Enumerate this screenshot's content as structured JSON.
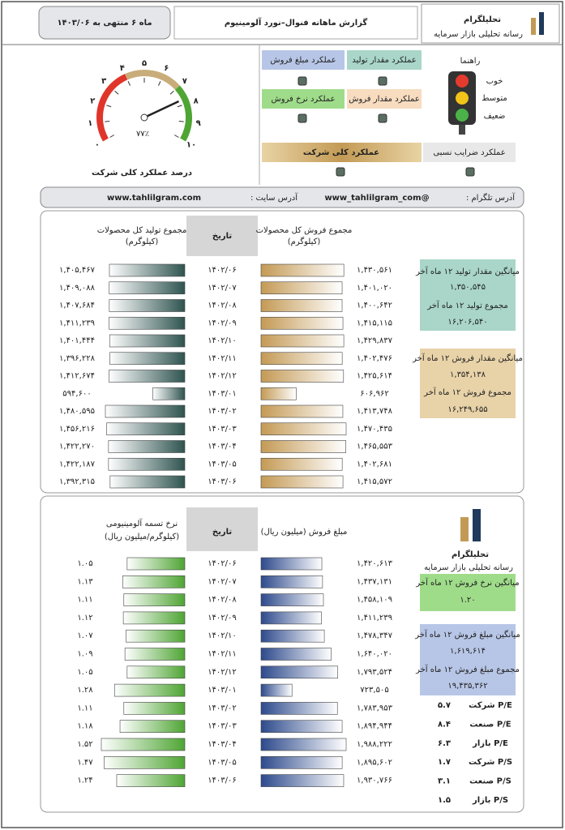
{
  "header": {
    "title": "گزارش ماهانه فنوال–نورد آلومینیوم",
    "period": "ماه ۶ منتهی به ۱۴۰۳/۰۶",
    "logo": "تحلیلگرام",
    "logo_sub": "رسانه تحلیلی بازار سرمایه"
  },
  "guide": {
    "title": "راهنما",
    "good": "خوب",
    "medium": "متوسط",
    "weak": "ضعیف"
  },
  "indicators": {
    "production_qty": "عملکرد مقدار تولید",
    "sales_amount": "عملکرد مبلغ فروش",
    "sales_qty": "عملکرد مقدار فروش",
    "sales_rate": "عملکرد نرخ فروش",
    "ratios": "عملکرد ضرایب نسبی",
    "overall": "عملکرد کلی شرکت"
  },
  "gauge": {
    "title": "درصد عملکرد کلی شرکت",
    "value": 77,
    "value_label": "۷۷٪",
    "ticks": [
      {
        "value": 0,
        "label": "۰"
      },
      {
        "value": 10,
        "label": "۱"
      },
      {
        "value": 20,
        "label": "۲"
      },
      {
        "value": 30,
        "label": "۳"
      },
      {
        "value": 40,
        "label": "۴"
      },
      {
        "value": 50,
        "label": "۵"
      },
      {
        "value": 60,
        "label": "۶"
      },
      {
        "value": 70,
        "label": "۷"
      },
      {
        "value": 80,
        "label": "۸"
      },
      {
        "value": 90,
        "label": "۹"
      },
      {
        "value": 100,
        "label": "۱۰"
      }
    ]
  },
  "contact": {
    "telegram_label": "آدرس تلگرام :",
    "telegram": "@www_tahlilgram_com",
    "site_label": "آدرس سایت :",
    "site": "www.tahlilgram.com"
  },
  "table1": {
    "date_header": "تاریخ",
    "dates": [
      "۱۴۰۲/۰۶",
      "۱۴۰۲/۰۷",
      "۱۴۰۲/۰۸",
      "۱۴۰۲/۰۹",
      "۱۴۰۲/۱۰",
      "۱۴۰۲/۱۱",
      "۱۴۰۲/۱۲",
      "۱۴۰۳/۰۱",
      "۱۴۰۳/۰۲",
      "۱۴۰۳/۰۳",
      "۱۴۰۳/۰۴",
      "۱۴۰۳/۰۵",
      "۱۴۰۳/۰۶"
    ],
    "production": {
      "header": "مجموع تولید کل محصولات",
      "unit": "(کیلوگرم)",
      "values": [
        1405467,
        1409088,
        1407684,
        1411239,
        1401444,
        1396228,
        1412674,
        594600,
        1480595,
        1456216,
        1422270,
        1422187,
        1392315
      ],
      "value_labels": [
        "۱,۴۰۵,۴۶۷",
        "۱,۴۰۹,۰۸۸",
        "۱,۴۰۷,۶۸۴",
        "۱,۴۱۱,۲۳۹",
        "۱,۴۰۱,۴۴۴",
        "۱,۳۹۶,۲۲۸",
        "۱,۴۱۲,۶۷۴",
        "۵۹۴,۶۰۰",
        "۱,۴۸۰,۵۹۵",
        "۱,۴۵۶,۲۱۶",
        "۱,۴۲۲,۲۷۰",
        "۱,۴۲۲,۱۸۷",
        "۱,۳۹۲,۳۱۵"
      ]
    },
    "sales": {
      "header": "مجموع فروش کل محصولات",
      "unit": "(کیلوگرم)",
      "values": [
        1430561,
        1401020,
        1400642,
        1415115,
        1429837,
        1402476,
        1425614,
        606962,
        1413748,
        1470435,
        1465553,
        1402681,
        1415572
      ],
      "value_labels": [
        "۱,۴۳۰,۵۶۱",
        "۱,۴۰۱,۰۲۰",
        "۱,۴۰۰,۶۴۲",
        "۱,۴۱۵,۱۱۵",
        "۱,۴۲۹,۸۳۷",
        "۱,۴۰۲,۴۷۶",
        "۱,۴۲۵,۶۱۴",
        "۶۰۶,۹۶۲",
        "۱,۴۱۳,۷۴۸",
        "۱,۴۷۰,۴۳۵",
        "۱,۴۶۵,۵۵۳",
        "۱,۴۰۲,۶۸۱",
        "۱,۴۱۵,۵۷۲"
      ]
    },
    "stats": {
      "avg_production_label": "میانگین مقدار تولید ۱۲ ماه آخر",
      "avg_production": "۱,۳۵۰,۵۴۵",
      "sum_production_label": "مجموع تولید ۱۲ ماه آخر",
      "sum_production": "۱۶,۲۰۶,۵۴۰",
      "avg_sales_label": "میانگین مقدار فروش ۱۲ ماه آخر",
      "avg_sales": "۱,۳۵۴,۱۳۸",
      "sum_sales_label": "مجموع فروش ۱۲ ماه آخر",
      "sum_sales": "۱۶,۲۴۹,۶۵۵"
    }
  },
  "table2": {
    "date_header": "تاریخ",
    "dates": [
      "۱۴۰۲/۰۶",
      "۱۴۰۲/۰۷",
      "۱۴۰۲/۰۸",
      "۱۴۰۲/۰۹",
      "۱۴۰۲/۱۰",
      "۱۴۰۲/۱۱",
      "۱۴۰۲/۱۲",
      "۱۴۰۳/۰۱",
      "۱۴۰۳/۰۲",
      "۱۴۰۳/۰۳",
      "۱۴۰۳/۰۴",
      "۱۴۰۳/۰۵",
      "۱۴۰۳/۰۶"
    ],
    "rate": {
      "header": "نرخ تسمه آلومینیومی",
      "unit": "(کیلوگرم/میلیون ریال)",
      "values": [
        1.05,
        1.13,
        1.11,
        1.12,
        1.07,
        1.09,
        1.05,
        1.28,
        1.11,
        1.18,
        1.52,
        1.47,
        1.24
      ],
      "value_labels": [
        "۱.۰۵",
        "۱.۱۳",
        "۱.۱۱",
        "۱.۱۲",
        "۱.۰۷",
        "۱.۰۹",
        "۱.۰۵",
        "۱.۲۸",
        "۱.۱۱",
        "۱.۱۸",
        "۱.۵۲",
        "۱.۴۷",
        "۱.۲۴"
      ]
    },
    "amount": {
      "header": "مبلغ فروش (میلیون ریال)",
      "values": [
        1420613,
        1437131,
        1458109,
        1411239,
        1478347,
        1640020,
        1793524,
        723505,
        1783953,
        1894944,
        1988222,
        1895602,
        1930766
      ],
      "value_labels": [
        "۱,۴۲۰,۶۱۳",
        "۱,۴۳۷,۱۳۱",
        "۱,۴۵۸,۱۰۹",
        "۱,۴۱۱,۲۳۹",
        "۱,۴۷۸,۳۴۷",
        "۱,۶۴۰,۰۲۰",
        "۱,۷۹۳,۵۲۴",
        "۷۲۳,۵۰۵",
        "۱,۷۸۳,۹۵۳",
        "۱,۸۹۴,۹۴۴",
        "۱,۹۸۸,۲۲۲",
        "۱,۸۹۵,۶۰۲",
        "۱,۹۳۰,۷۶۶"
      ]
    },
    "stats": {
      "avg_rate_label": "میانگین نرخ فروش ۱۲ ماه آخر",
      "avg_rate": "۱.۲۰",
      "avg_amount_label": "میانگین مبلغ فروش ۱۲ ماه آخر",
      "avg_amount": "۱,۶۱۹,۶۱۴",
      "sum_amount_label": "مجموع مبلغ فروش ۱۲ ماه آخر",
      "sum_amount": "۱۹,۴۳۵,۳۶۲"
    },
    "ratios": [
      {
        "label": "P/E شرکت",
        "value": "۵.۷"
      },
      {
        "label": "P/E صنعت",
        "value": "۸.۴"
      },
      {
        "label": "P/E بازار",
        "value": "۶.۳"
      },
      {
        "label": "P/S شرکت",
        "value": "۱.۷"
      },
      {
        "label": "P/S صنعت",
        "value": "۳.۱"
      },
      {
        "label": "P/S بازار",
        "value": "۱.۵"
      }
    ]
  }
}
